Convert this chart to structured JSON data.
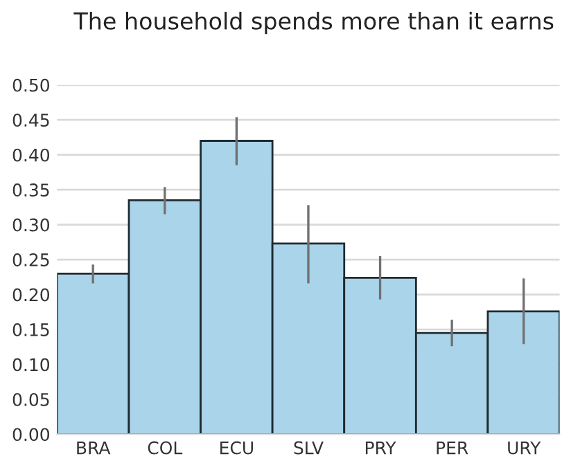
{
  "chart_data": {
    "type": "bar",
    "title": "The household spends more than it earns",
    "categories": [
      "BRA",
      "COL",
      "ECU",
      "SLV",
      "PRY",
      "PER",
      "URY"
    ],
    "values": [
      0.23,
      0.335,
      0.42,
      0.273,
      0.224,
      0.145,
      0.176
    ],
    "errors": [
      [
        0.216,
        0.243
      ],
      [
        0.315,
        0.354
      ],
      [
        0.385,
        0.454
      ],
      [
        0.216,
        0.328
      ],
      [
        0.193,
        0.255
      ],
      [
        0.126,
        0.164
      ],
      [
        0.129,
        0.223
      ]
    ],
    "color": "#a9d4ea",
    "ylim": [
      0,
      0.5
    ],
    "yticks": [
      {
        "value": 0,
        "label": "0.00"
      },
      {
        "value": 0.05,
        "label": "0.05"
      },
      {
        "value": 0.1,
        "label": "0.10"
      },
      {
        "value": 0.15,
        "label": "0.15"
      },
      {
        "value": 0.2,
        "label": "0.20"
      },
      {
        "value": 0.25,
        "label": "0.25"
      },
      {
        "value": 0.3,
        "label": "0.30"
      },
      {
        "value": 0.35,
        "label": "0.35"
      },
      {
        "value": 0.4,
        "label": "0.40"
      },
      {
        "value": 0.45,
        "label": "0.45"
      },
      {
        "value": 0.5,
        "label": "0.50"
      }
    ],
    "grid": "y"
  }
}
